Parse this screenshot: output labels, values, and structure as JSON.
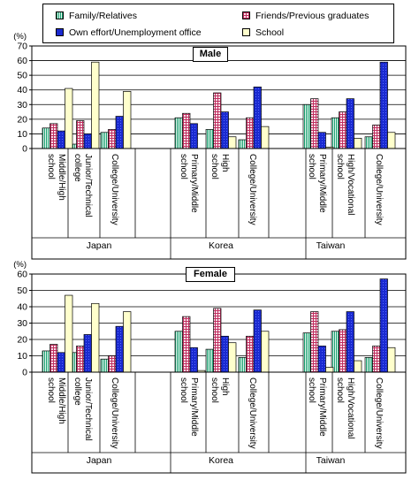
{
  "legend": [
    {
      "label": "Family/Relatives",
      "fill": "#ffffff",
      "pattern": "vstripe",
      "color": "#33aa88"
    },
    {
      "label": "Friends/Previous graduates",
      "fill": "#ffffff",
      "pattern": "grid",
      "color": "#cc3366"
    },
    {
      "label": "Own effort/Unemployment office",
      "fill": "#1a2ad0",
      "pattern": "dots",
      "color": "#000080"
    },
    {
      "label": "School",
      "fill": "#ffffcc",
      "pattern": "solid",
      "color": "#ffffcc"
    }
  ],
  "chart_data": [
    {
      "type": "bar",
      "title": "Male",
      "ylabel": "(%)",
      "ylim": [
        0,
        70
      ],
      "yticks": [
        0,
        10,
        20,
        30,
        40,
        50,
        60,
        70
      ],
      "countries": [
        "Japan",
        "Korea",
        "Taiwan"
      ],
      "categories": [
        {
          "country": "Japan",
          "label": "Middle/High school"
        },
        {
          "country": "Japan",
          "label": "Junior/Technical college"
        },
        {
          "country": "Japan",
          "label": "College/University"
        },
        {
          "country": "Korea",
          "label": "Primary/Middle school"
        },
        {
          "country": "Korea",
          "label": "High school"
        },
        {
          "country": "Korea",
          "label": "College/University"
        },
        {
          "country": "Taiwan",
          "label": "Primary/Middle school"
        },
        {
          "country": "Taiwan",
          "label": "High/Vocational school"
        },
        {
          "country": "Taiwan",
          "label": "College/University"
        }
      ],
      "series": [
        {
          "name": "Family/Relatives",
          "values": [
            14,
            3,
            11,
            21,
            13,
            6,
            30,
            21,
            8
          ]
        },
        {
          "name": "Friends/Previous graduates",
          "values": [
            17,
            19,
            13,
            24,
            38,
            21,
            34,
            25,
            16
          ]
        },
        {
          "name": "Own effort/Unemployment office",
          "values": [
            12,
            10,
            22,
            17,
            25,
            42,
            11,
            34,
            59
          ]
        },
        {
          "name": "School",
          "values": [
            41,
            59,
            39,
            0,
            8,
            15,
            1,
            7,
            11
          ]
        }
      ]
    },
    {
      "type": "bar",
      "title": "Female",
      "ylabel": "(%)",
      "ylim": [
        0,
        60
      ],
      "yticks": [
        0,
        10,
        20,
        30,
        40,
        50,
        60
      ],
      "countries": [
        "Japan",
        "Korea",
        "Taiwan"
      ],
      "categories": [
        {
          "country": "Japan",
          "label": "Middle/High school"
        },
        {
          "country": "Japan",
          "label": "Junior/Technical college"
        },
        {
          "country": "Japan",
          "label": "College/University"
        },
        {
          "country": "Korea",
          "label": "Primary/Middle school"
        },
        {
          "country": "Korea",
          "label": "High school"
        },
        {
          "country": "Korea",
          "label": "College/University"
        },
        {
          "country": "Taiwan",
          "label": "Primary/Middle school"
        },
        {
          "country": "Taiwan",
          "label": "High/Vocational school"
        },
        {
          "country": "Taiwan",
          "label": "College/University"
        }
      ],
      "series": [
        {
          "name": "Family/Relatives",
          "values": [
            13,
            12,
            8,
            25,
            14,
            9,
            24,
            25,
            9
          ]
        },
        {
          "name": "Friends/Previous graduates",
          "values": [
            17,
            16,
            10,
            34,
            39,
            22,
            37,
            26,
            16
          ]
        },
        {
          "name": "Own effort/Unemployment office",
          "values": [
            12,
            23,
            28,
            15,
            22,
            38,
            16,
            37,
            57
          ]
        },
        {
          "name": "School",
          "values": [
            47,
            42,
            37,
            1,
            18,
            25,
            3,
            7,
            15
          ]
        }
      ]
    }
  ]
}
